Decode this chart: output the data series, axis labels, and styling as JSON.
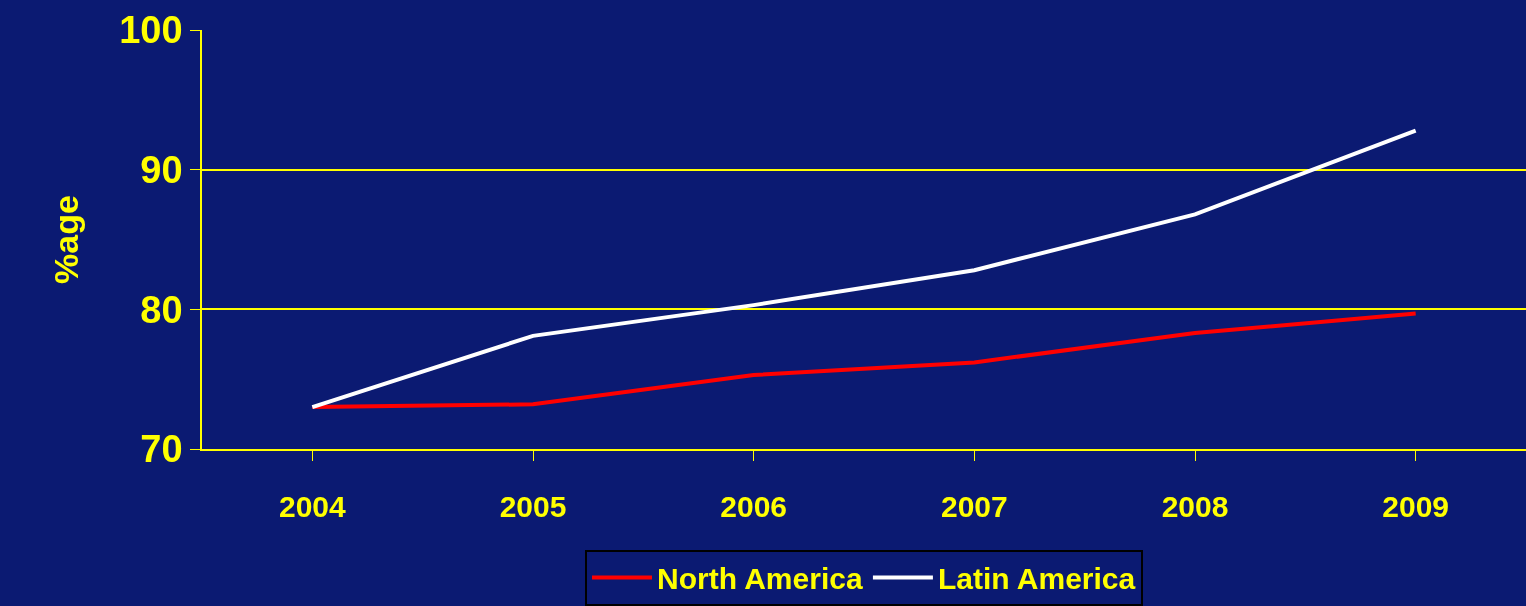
{
  "chart_data": {
    "type": "line",
    "ylabel": "%age",
    "categories": [
      "2004",
      "2005",
      "2006",
      "2007",
      "2008",
      "2009"
    ],
    "series": [
      {
        "name": "North America",
        "color": "#ff0000",
        "values": [
          73.0,
          73.2,
          75.3,
          76.2,
          78.3,
          79.7
        ]
      },
      {
        "name": "Latin America",
        "color": "#ffffff",
        "values": [
          73.0,
          78.1,
          80.3,
          82.8,
          86.8,
          92.8
        ]
      }
    ],
    "ylim": [
      70,
      100
    ],
    "yticks": [
      70,
      80,
      90,
      100
    ],
    "grid": "y",
    "legend": "bottom",
    "marker": "none",
    "line_style": "solid"
  }
}
